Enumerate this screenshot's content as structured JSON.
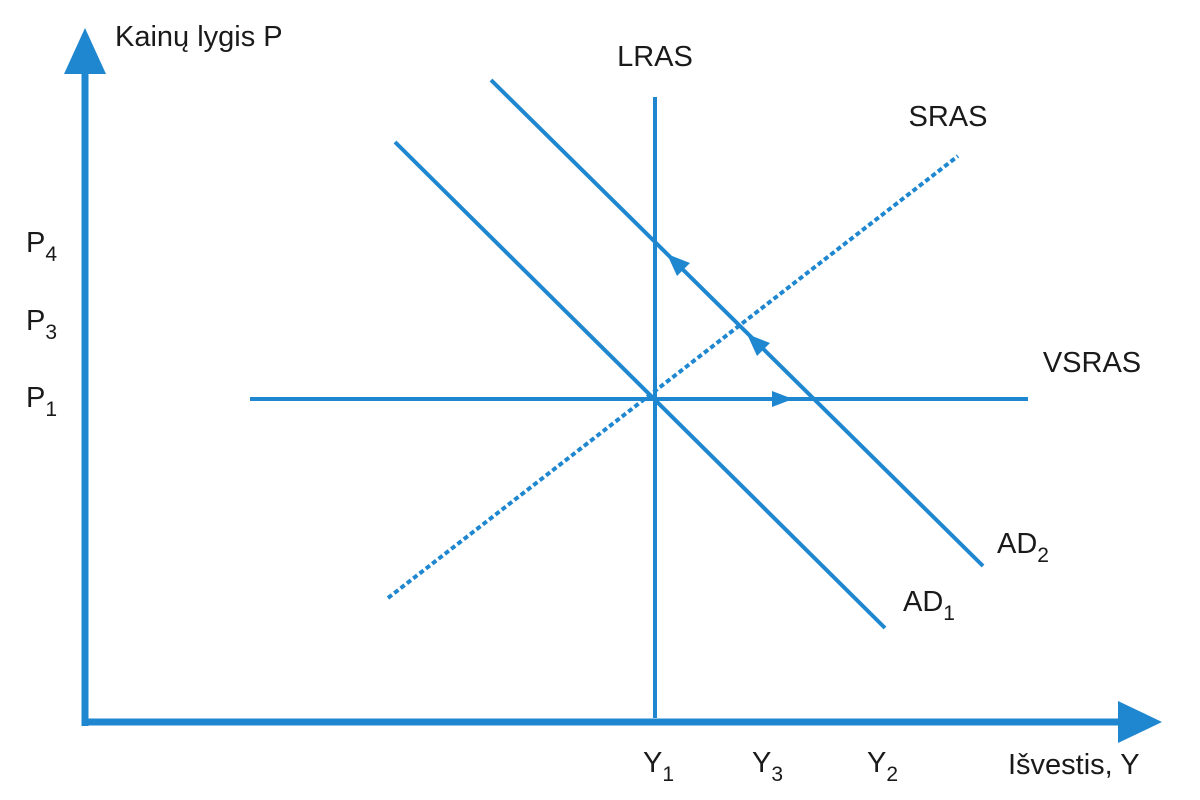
{
  "axes": {
    "y_label": "Kainų lygis P",
    "x_label": "Išvestis, Y"
  },
  "price_levels": [
    {
      "symbol": "P",
      "subscript": "4"
    },
    {
      "symbol": "P",
      "subscript": "3"
    },
    {
      "symbol": "P",
      "subscript": "1"
    }
  ],
  "outputs": [
    {
      "symbol": "Y",
      "subscript": "1"
    },
    {
      "symbol": "Y",
      "subscript": "3"
    },
    {
      "symbol": "Y",
      "subscript": "2"
    }
  ],
  "curves": {
    "lras": "LRAS",
    "sras": "SRAS",
    "vsras": "VSRAS",
    "ad1": {
      "symbol": "AD",
      "subscript": "1"
    },
    "ad2": {
      "symbol": "AD",
      "subscript": "2"
    }
  }
}
